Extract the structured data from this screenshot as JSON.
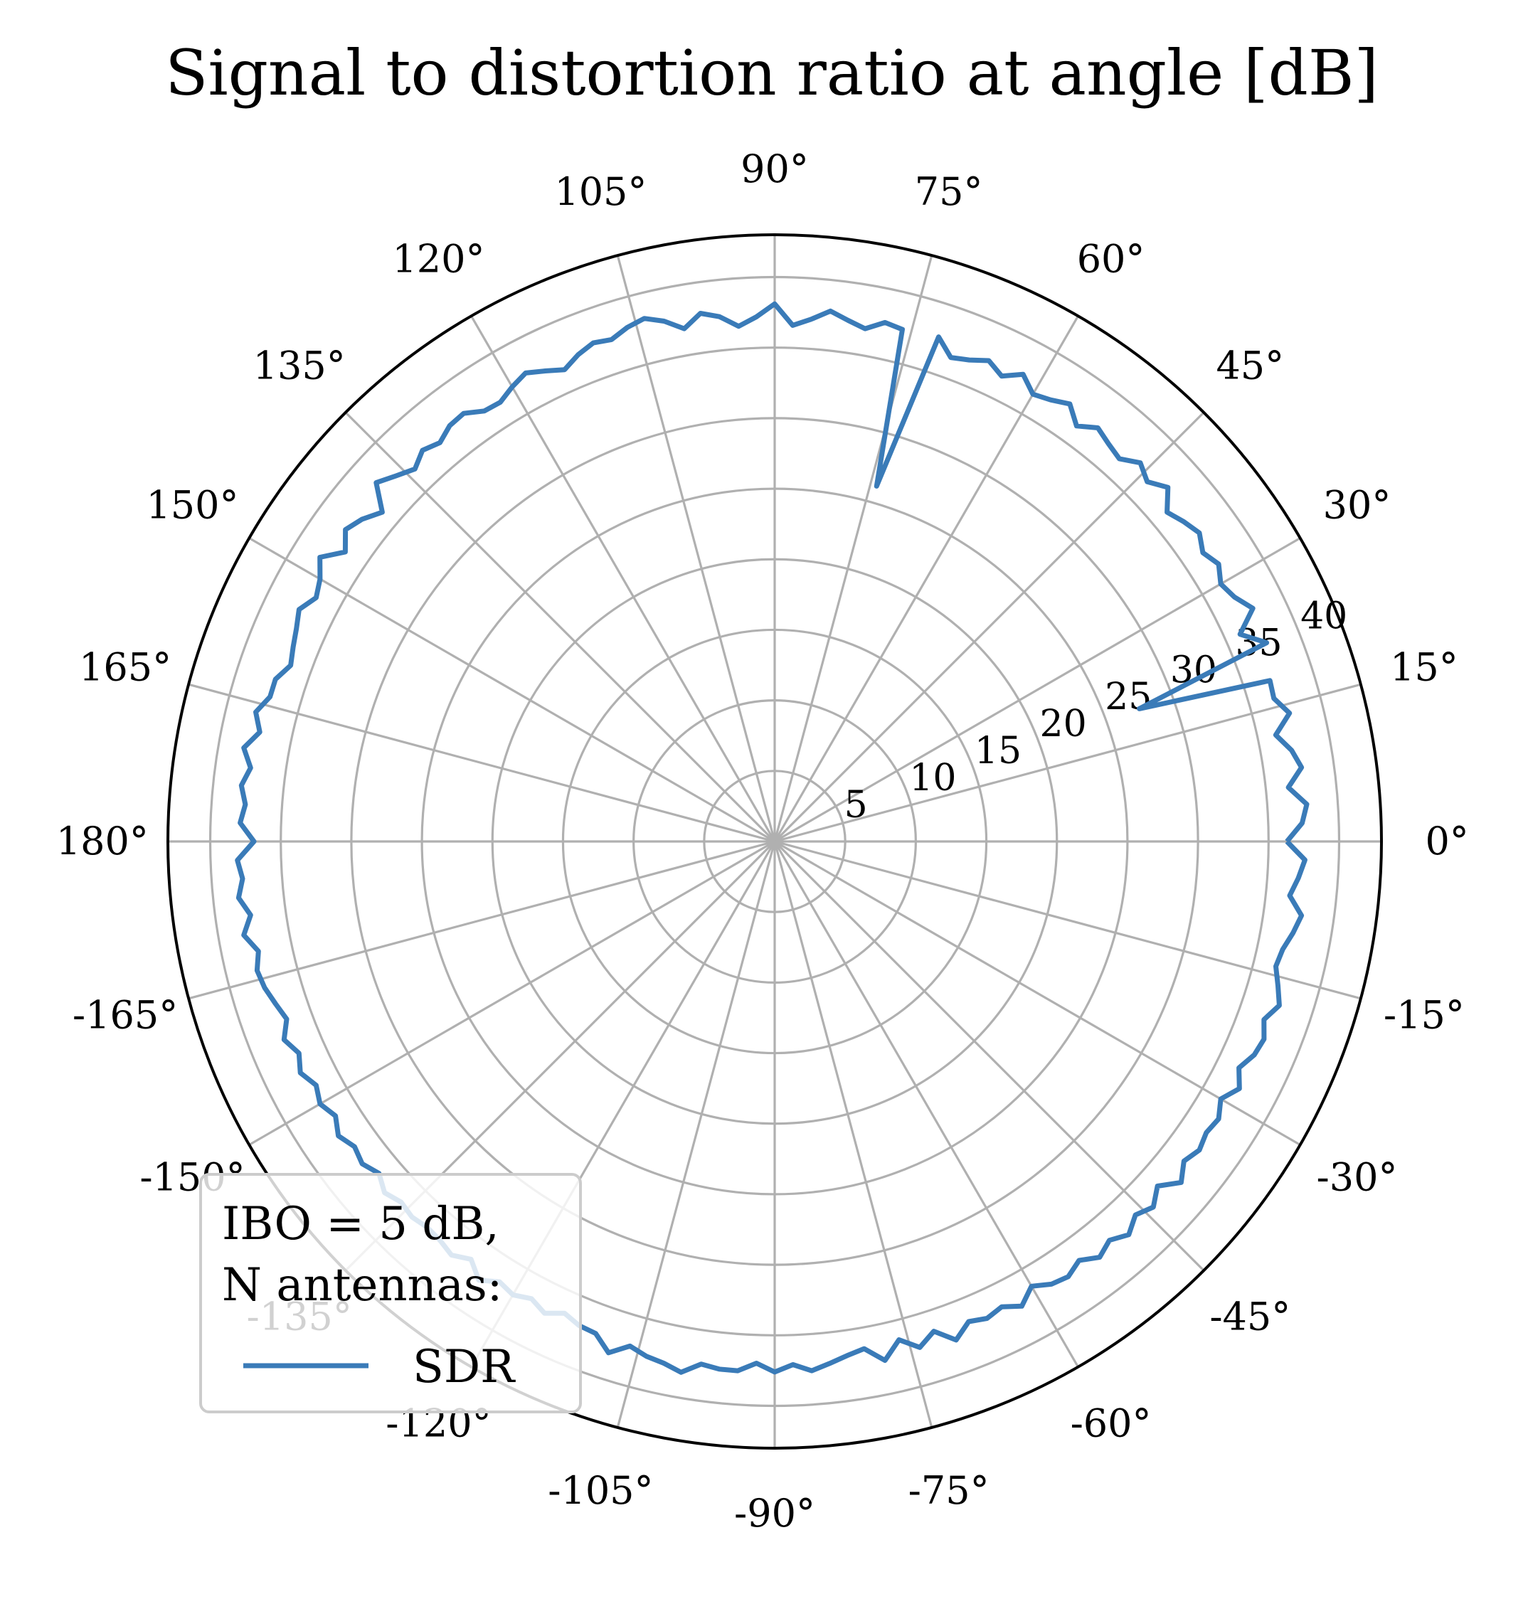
{
  "chart_data": {
    "type": "line",
    "projection": "polar",
    "title": "Signal to distortion ratio at angle [dB]",
    "angle_unit": "degrees",
    "angular_ticks": [
      "0°",
      "15°",
      "30°",
      "45°",
      "60°",
      "75°",
      "90°",
      "105°",
      "120°",
      "135°",
      "150°",
      "165°",
      "180°",
      "-165°",
      "-150°",
      "-135°",
      "-120°",
      "-105°",
      "-90°",
      "-75°",
      "-60°",
      "-45°",
      "-30°",
      "-15°"
    ],
    "radial_ticks": [
      "5",
      "10",
      "15",
      "20",
      "25",
      "30",
      "35",
      "40"
    ],
    "rlim": [
      0,
      43
    ],
    "grid": true,
    "line_color": "#3a7bb8",
    "legend": {
      "placement": "lower-left",
      "title_lines": [
        "IBO = 5 dB,",
        "N antennas:"
      ],
      "entries": [
        "SDR"
      ]
    },
    "series": [
      {
        "name": "SDR",
        "theta": [
          0,
          2,
          4,
          6,
          8,
          10,
          12,
          14,
          16,
          18,
          20,
          22,
          24,
          26,
          28,
          30,
          32,
          34,
          36,
          38,
          40,
          42,
          44,
          46,
          48,
          50,
          52,
          54,
          56,
          58,
          60,
          62,
          64,
          66,
          68,
          70,
          72,
          74,
          76,
          78,
          80,
          82,
          84,
          86,
          88,
          90,
          92,
          94,
          96,
          98,
          100,
          102,
          104,
          106,
          108,
          110,
          112,
          114,
          116,
          118,
          120,
          122,
          124,
          126,
          128,
          130,
          132,
          134,
          136,
          138,
          140,
          142,
          144,
          146,
          148,
          150,
          152,
          154,
          156,
          158,
          160,
          162,
          164,
          166,
          168,
          170,
          172,
          174,
          176,
          178,
          180,
          182,
          184,
          186,
          188,
          190,
          192,
          194,
          196,
          198,
          200,
          202,
          204,
          206,
          208,
          210,
          212,
          214,
          216,
          218,
          220,
          222,
          224,
          226,
          228,
          230,
          232,
          234,
          236,
          238,
          240,
          242,
          244,
          246,
          248,
          250,
          252,
          254,
          256,
          258,
          260,
          262,
          264,
          266,
          268,
          270,
          272,
          274,
          276,
          278,
          280,
          282,
          284,
          286,
          288,
          290,
          292,
          294,
          296,
          298,
          300,
          302,
          304,
          306,
          308,
          310,
          312,
          314,
          316,
          318,
          320,
          322,
          324,
          326,
          328,
          330,
          332,
          334,
          336,
          338,
          340,
          342,
          344,
          346,
          348,
          350,
          352,
          354,
          356,
          358
        ],
        "r": [
          36.3,
          37.4,
          37.8,
          36.6,
          37.7,
          37.2,
          36.3,
          37.6,
          36.8,
          36.9,
          27.5,
          37.6,
          36.1,
          37.7,
          36.9,
          36.5,
          37.1,
          36.6,
          37.2,
          36.8,
          36.3,
          37.5,
          36.7,
          37.3,
          36.5,
          36.8,
          37.2,
          36.4,
          37.4,
          36.9,
          36.6,
          37.5,
          36.7,
          37.3,
          36.8,
          36.5,
          37.6,
          26.2,
          37.4,
          37.6,
          36.9,
          37.3,
          37.8,
          37.1,
          36.6,
          38.1,
          37.2,
          36.6,
          37.4,
          37.8,
          36.9,
          37.7,
          38.2,
          37.9,
          37.4,
          37.6,
          37.2,
          36.6,
          37.1,
          37.6,
          37.2,
          36.7,
          36.8,
          37.5,
          37.4,
          36.9,
          37.3,
          36.7,
          37.3,
          38.0,
          36.3,
          37.1,
          37.6,
          36.7,
          38.0,
          37.2,
          36.8,
          37.5,
          37.1,
          36.8,
          36.5,
          37.2,
          37.2,
          37.9,
          37.3,
          38.2,
          37.5,
          38.0,
          37.6,
          37.9,
          36.9,
          38.1,
          37.8,
          38.2,
          37.5,
          38.2,
          37.4,
          37.8,
          37.6,
          37.2,
          36.8,
          37.5,
          36.9,
          37.4,
          36.8,
          37.2,
          36.7,
          37.3,
          36.8,
          37.1,
          36.6,
          37.2,
          36.8,
          37.0,
          36.8,
          36.9,
          37.2,
          36.6,
          37.5,
          36.8,
          37.1,
          36.7,
          37.2,
          36.6,
          37.0,
          37.1,
          38.1,
          37.2,
          37.6,
          37.8,
          38.2,
          37.4,
          37.6,
          37.6,
          37.0,
          37.6,
          37.1,
          37.6,
          37.2,
          36.8,
          36.5,
          37.6,
          36.4,
          37.3,
          36.5,
          37.6,
          36.7,
          37.0,
          36.7,
          37.3,
          36.4,
          37.0,
          37.2,
          36.7,
          37.4,
          36.9,
          37.5,
          36.8,
          37.3,
          36.5,
          37.6,
          36.8,
          37.2,
          36.9,
          37.1,
          36.5,
          37.3,
          36.6,
          37.2,
          37.4,
          36.9,
          37.6,
          37.1,
          36.6,
          36.8,
          37.3,
          37.7,
          36.7,
          37.2,
          37.6
        ]
      }
    ]
  }
}
